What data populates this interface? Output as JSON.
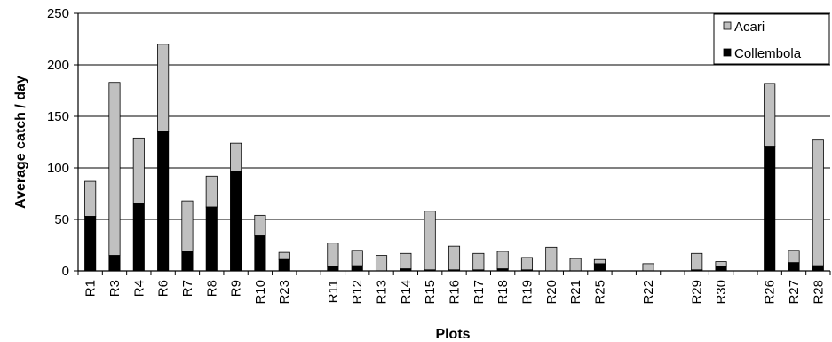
{
  "chart_data": {
    "type": "bar",
    "stacked": true,
    "xlabel": "Plots",
    "ylabel": "Average catch / day",
    "ylim": [
      0,
      250
    ],
    "yticks": [
      0,
      50,
      100,
      150,
      200,
      250
    ],
    "grid": true,
    "legend_position": "top-right",
    "groups": [
      [
        "R1",
        "R3",
        "R4",
        "R6",
        "R7",
        "R8",
        "R9",
        "R10",
        "R23"
      ],
      [
        "R11",
        "R12",
        "R13",
        "R14",
        "R15",
        "R16",
        "R17",
        "R18",
        "R19",
        "R20",
        "R21",
        "R25"
      ],
      [
        "R22"
      ],
      [
        "R29",
        "R30"
      ],
      [
        "R26",
        "R27",
        "R28"
      ]
    ],
    "categories": [
      "R1",
      "R3",
      "R4",
      "R6",
      "R7",
      "R8",
      "R9",
      "R10",
      "R23",
      "R11",
      "R12",
      "R13",
      "R14",
      "R15",
      "R16",
      "R17",
      "R18",
      "R19",
      "R20",
      "R21",
      "R25",
      "R22",
      "R29",
      "R30",
      "R26",
      "R27",
      "R28"
    ],
    "series": [
      {
        "name": "Collembola",
        "color": "#000000",
        "values": [
          53,
          15,
          66,
          135,
          19,
          62,
          97,
          34,
          11,
          4,
          5,
          0,
          2,
          1,
          1,
          1,
          2,
          1,
          0,
          0,
          7,
          0,
          1,
          4,
          121,
          8,
          5
        ]
      },
      {
        "name": "Acari",
        "color": "#c0c0c0",
        "values": [
          34,
          168,
          63,
          85,
          49,
          30,
          27,
          20,
          7,
          23,
          15,
          15,
          15,
          57,
          23,
          16,
          17,
          12,
          23,
          12,
          4,
          7,
          16,
          5,
          61,
          12,
          122
        ]
      }
    ],
    "legend": [
      "Acari",
      "Collembola"
    ]
  }
}
